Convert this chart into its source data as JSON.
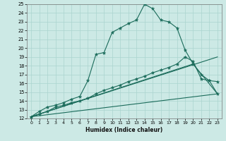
{
  "background_color": "#cce9e5",
  "grid_color": "#aad4cf",
  "line_color": "#1a6b5a",
  "xlabel": "Humidex (Indice chaleur)",
  "xlim": [
    -0.5,
    23.5
  ],
  "ylim": [
    12,
    25
  ],
  "xticks": [
    0,
    1,
    2,
    3,
    4,
    5,
    6,
    7,
    8,
    9,
    10,
    11,
    12,
    13,
    14,
    15,
    16,
    17,
    18,
    19,
    20,
    21,
    22,
    23
  ],
  "yticks": [
    12,
    13,
    14,
    15,
    16,
    17,
    18,
    19,
    20,
    21,
    22,
    23,
    24,
    25
  ],
  "main_x": [
    0,
    1,
    2,
    3,
    4,
    5,
    6,
    7,
    8,
    9,
    10,
    11,
    12,
    13,
    14,
    15,
    16,
    17,
    18,
    19,
    20,
    21,
    22,
    23
  ],
  "main_y": [
    12.2,
    12.8,
    13.3,
    13.5,
    13.8,
    14.2,
    14.5,
    16.3,
    19.3,
    19.5,
    21.8,
    22.3,
    22.8,
    23.2,
    25.0,
    24.5,
    23.2,
    23.0,
    22.3,
    19.8,
    18.2,
    17.0,
    16.3,
    16.2
  ],
  "line2_x": [
    0,
    1,
    2,
    3,
    4,
    5,
    6,
    7,
    8,
    9,
    10,
    11,
    12,
    13,
    14,
    15,
    16,
    17,
    18,
    19,
    20,
    21,
    22,
    23
  ],
  "line2_y": [
    12.2,
    12.5,
    12.8,
    13.3,
    13.5,
    13.8,
    14.0,
    14.3,
    14.8,
    15.2,
    15.5,
    15.8,
    16.2,
    16.5,
    16.8,
    17.2,
    17.5,
    17.8,
    18.2,
    19.0,
    18.5,
    16.5,
    16.3,
    14.8
  ],
  "line3_x": [
    0,
    23
  ],
  "line3_y": [
    12.2,
    19.0
  ],
  "line4_x": [
    0,
    20,
    23
  ],
  "line4_y": [
    12.2,
    18.2,
    14.8
  ],
  "line5_x": [
    0,
    23
  ],
  "line5_y": [
    12.2,
    14.8
  ]
}
